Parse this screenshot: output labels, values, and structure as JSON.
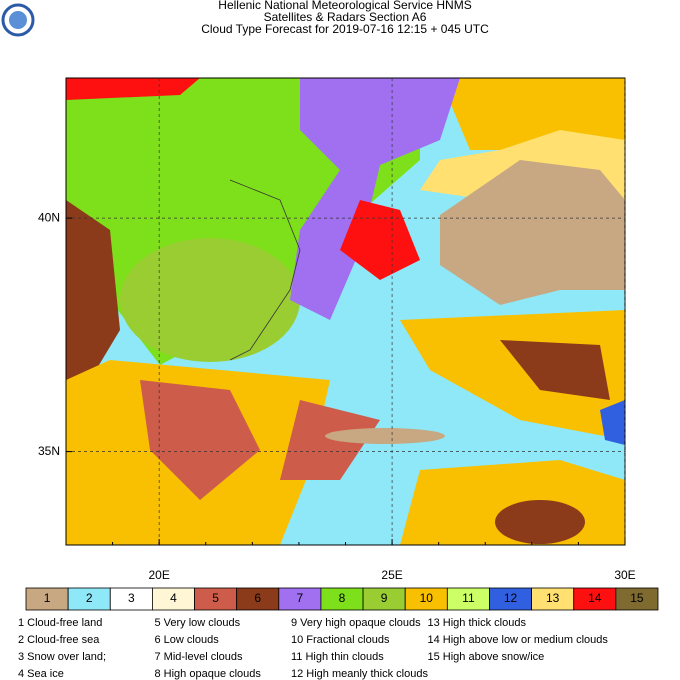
{
  "header": {
    "lines": [
      "Hellenic National Meteorological Service HNMS",
      "Satellites & Radars Section A6",
      "Cloud Type Forecast for 2019-07-16 12:15 + 045 UTC"
    ]
  },
  "map": {
    "lon_range": [
      18,
      30
    ],
    "lat_range": [
      33,
      43
    ],
    "lon_ticks": [
      {
        "value": 20,
        "label": "20E"
      },
      {
        "value": 25,
        "label": "25E"
      },
      {
        "value": 30,
        "label": "30E"
      }
    ],
    "lat_ticks": [
      {
        "value": 40,
        "label": "40N"
      },
      {
        "value": 35,
        "label": "35N"
      }
    ]
  },
  "legend": {
    "items": [
      {
        "key": "1",
        "color": "#c8a882",
        "label": "1 Cloud-free land"
      },
      {
        "key": "2",
        "color": "#8ee8f8",
        "label": "2 Cloud-free sea"
      },
      {
        "key": "3",
        "color": "#ffffff",
        "label": "3 Snow over land;"
      },
      {
        "key": "4",
        "color": "#fff6d6",
        "label": "4 Sea ice"
      },
      {
        "key": "5",
        "color": "#cd5c4a",
        "label": "5 Very low clouds"
      },
      {
        "key": "6",
        "color": "#8b3a1a",
        "label": "6 Low clouds"
      },
      {
        "key": "7",
        "color": "#a070f0",
        "label": "7 Mid-level clouds"
      },
      {
        "key": "8",
        "color": "#7ee01a",
        "label": "8 High opaque clouds"
      },
      {
        "key": "9",
        "color": "#9acd32",
        "label": "9 Very high opaque clouds"
      },
      {
        "key": "10",
        "color": "#f8c000",
        "label": "10 Fractional clouds"
      },
      {
        "key": "11",
        "color": "#ccff66",
        "label": "11 High thin clouds"
      },
      {
        "key": "12",
        "color": "#3060e0",
        "label": "12 High meanly thick clouds"
      },
      {
        "key": "13",
        "color": "#ffe070",
        "label": "13 High thick clouds"
      },
      {
        "key": "14",
        "color": "#ff1010",
        "label": "14 High above low or medium clouds"
      },
      {
        "key": "15",
        "color": "#7f6b30",
        "label": "15 High above snow/ice"
      }
    ]
  }
}
